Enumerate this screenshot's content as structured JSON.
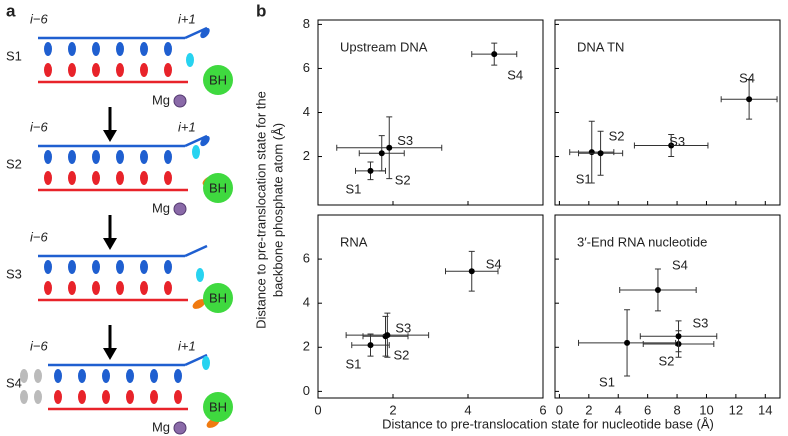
{
  "figure": {
    "panel_labels": [
      "a",
      "b"
    ],
    "ylabel": [
      "Distance to pre-translocation state for the",
      "backbone phosphate atom (Å)"
    ],
    "xlabel": "Distance to pre-translocation state for nucleotide base (Å)"
  },
  "diagram": {
    "states": [
      {
        "label": "S1",
        "left": "i−6",
        "right": "i+1",
        "bh": "BH",
        "mg": "Mg"
      },
      {
        "label": "S2",
        "left": "i−6",
        "right": "i+1",
        "bh": "BH",
        "mg": "Mg"
      },
      {
        "label": "S3",
        "left": "i−6",
        "bh": "BH"
      },
      {
        "label": "S4",
        "left": "i−6",
        "right": "i+1",
        "bh": "BH",
        "mg": "Mg"
      }
    ]
  },
  "chart_data": [
    {
      "type": "scatter",
      "title": "Upstream DNA",
      "color": "#1e8fd6",
      "xlim": [
        0,
        6
      ],
      "ylim": [
        -0.2,
        8.2
      ],
      "xticks": [
        0,
        2,
        4,
        6
      ],
      "yticks": [
        2,
        4,
        6,
        8
      ],
      "labels": [
        "S1",
        "S2",
        "S3",
        "S4"
      ],
      "x": [
        1.4,
        1.7,
        1.9,
        4.7
      ],
      "y": [
        1.35,
        2.15,
        2.4,
        6.65
      ],
      "xerr": [
        0.4,
        0.6,
        1.4,
        0.6
      ],
      "yerr": [
        0.4,
        0.8,
        1.4,
        0.5
      ]
    },
    {
      "type": "scatter",
      "title": "DNA TN",
      "color": "#1ec6e6",
      "xlim": [
        -0.3,
        15
      ],
      "ylim": [
        -0.2,
        8.2
      ],
      "xticks": [
        0,
        2,
        4,
        6,
        8,
        10,
        12,
        14
      ],
      "yticks": [
        2,
        4,
        6,
        8
      ],
      "labels": [
        "S1",
        "S2",
        "S3",
        "S4"
      ],
      "x": [
        2.2,
        2.8,
        7.6,
        12.9
      ],
      "y": [
        2.2,
        2.15,
        2.5,
        4.6
      ],
      "xerr": [
        1.5,
        1.5,
        2.5,
        1.9
      ],
      "yerr": [
        1.4,
        1.0,
        0.5,
        0.9
      ]
    },
    {
      "type": "scatter",
      "title": "RNA",
      "color": "#e8232a",
      "xlim": [
        0,
        6
      ],
      "ylim": [
        -0.3,
        8
      ],
      "xticks": [
        0,
        2,
        4,
        6
      ],
      "yticks": [
        0,
        2,
        4,
        6
      ],
      "labels": [
        "S1",
        "S2",
        "S3",
        "S4"
      ],
      "x": [
        1.4,
        1.8,
        1.85,
        4.1
      ],
      "y": [
        2.1,
        2.5,
        2.55,
        5.45
      ],
      "xerr": [
        0.5,
        0.6,
        1.1,
        0.7
      ],
      "yerr": [
        0.5,
        0.9,
        1.0,
        0.9
      ]
    },
    {
      "type": "scatter",
      "title": "3′-End RNA nucleotide",
      "color": "#f0a400",
      "xlim": [
        -0.3,
        15
      ],
      "ylim": [
        -0.3,
        8
      ],
      "xticks": [
        0,
        2,
        4,
        6,
        8,
        10,
        12,
        14
      ],
      "yticks": [
        0,
        2,
        4,
        6
      ],
      "labels": [
        "S1",
        "S2",
        "S3",
        "S4"
      ],
      "x": [
        4.6,
        8.1,
        8.1,
        6.7
      ],
      "y": [
        2.2,
        2.15,
        2.5,
        4.6
      ],
      "xerr": [
        3.3,
        2.4,
        2.6,
        2.6
      ],
      "yerr": [
        1.5,
        0.6,
        0.7,
        0.95
      ]
    }
  ]
}
